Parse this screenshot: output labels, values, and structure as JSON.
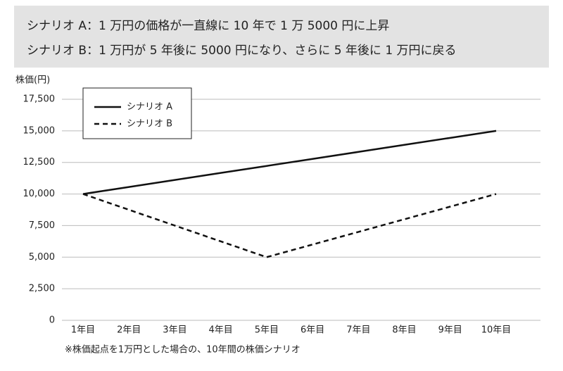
{
  "chart_data": {
    "type": "line",
    "header_lines": [
      "シナリオ A：1 万円の価格が一直線に 10 年で 1 万 5000 円に上昇",
      "シナリオ B：1 万円が 5 年後に 5000 円になり、さらに 5 年後に 1 万円に戻る"
    ],
    "y_label": "株価(円)",
    "note": "※株価起点を1万円とした場合の、10年間の株価シナリオ",
    "categories": [
      "1年目",
      "2年目",
      "3年目",
      "4年目",
      "5年目",
      "6年目",
      "7年目",
      "8年目",
      "9年目",
      "10年目"
    ],
    "series": [
      {
        "name": "シナリオ A",
        "color": "#111111",
        "dash": false,
        "values": [
          10000,
          10556,
          11111,
          11667,
          12222,
          12778,
          13333,
          13889,
          14444,
          15000
        ]
      },
      {
        "name": "シナリオ B",
        "color": "#111111",
        "dash": true,
        "values": [
          10000,
          8750,
          7500,
          6250,
          5000,
          6000,
          7000,
          8000,
          9000,
          10000
        ]
      }
    ],
    "ylim": [
      0,
      17500
    ],
    "yticks": [
      0,
      {
        "value": 2500,
        "label": "2,500"
      },
      {
        "value": 5000,
        "label": "5,000"
      },
      {
        "value": 7500,
        "label": "7,500"
      },
      {
        "value": 10000,
        "label": "10,000"
      },
      {
        "value": 12500,
        "label": "12,500"
      },
      {
        "value": 15000,
        "label": "15,000"
      },
      {
        "value": 17500,
        "label": "17,500"
      }
    ],
    "grid": true,
    "legend": "upper-left"
  }
}
